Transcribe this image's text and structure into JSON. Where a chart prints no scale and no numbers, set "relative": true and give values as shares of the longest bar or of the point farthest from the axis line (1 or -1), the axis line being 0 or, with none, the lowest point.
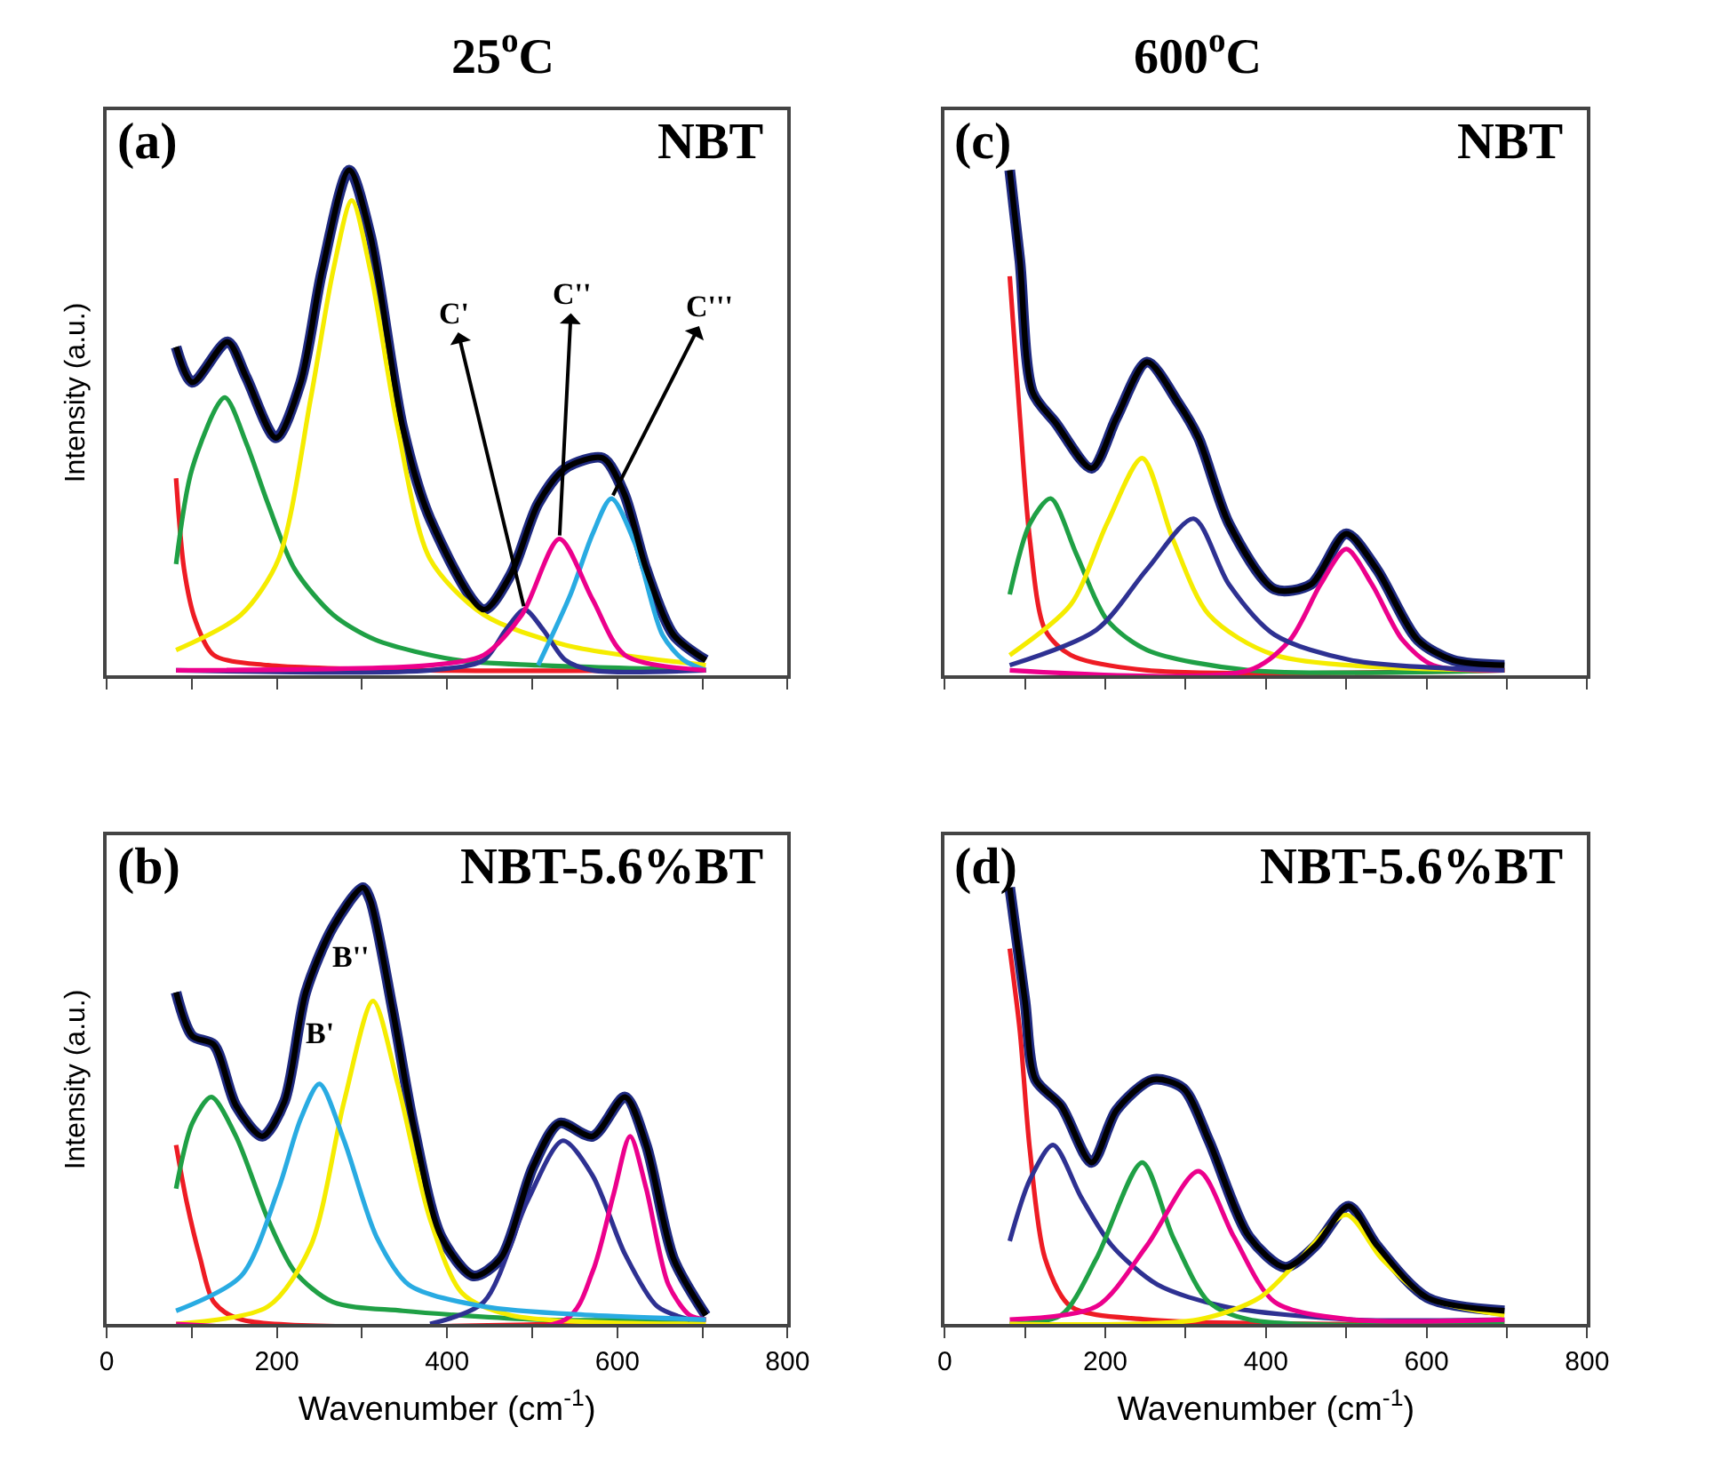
{
  "chart_data": [
    {
      "type": "line",
      "relative": true,
      "title": "25$^{o}$C",
      "ylabel": "Intensity (a.u.)",
      "xlim": [
        0,
        800
      ],
      "xticks": [
        0,
        {
          "value": 100,
          "label": null
        },
        {
          "value": 200,
          "label": null
        },
        {
          "value": 300,
          "label": null
        },
        {
          "value": 400,
          "label": null
        },
        {
          "value": 500,
          "label": null
        },
        {
          "value": 600,
          "label": null
        },
        {
          "value": 700,
          "label": null
        },
        {
          "value": 800,
          "label": null
        }
      ],
      "tick_labels": false,
      "annotations": [
        "(a)",
        "NBT",
        {
          "text": "C'",
          "x": 491,
          "y": 0.13
        },
        {
          "text": "C''",
          "x": 532,
          "y": 0.27
        },
        {
          "text": "C'''",
          "x": 593,
          "y": 0.35
        }
      ],
      "series": [
        {
          "color": "#1f2a80",
          "x": [
            81.6,
            100.6,
            142,
            164,
            199,
            228,
            253,
            285,
            310,
            348,
            380,
            443,
            475,
            507,
            539,
            583,
            608,
            634,
            666,
            704
          ],
          "values": [
            0.65,
            0.58,
            0.66,
            0.59,
            0.47,
            0.58,
            0.8,
            1.0,
            0.87,
            0.49,
            0.31,
            0.13,
            0.2,
            0.34,
            0.41,
            0.43,
            0.36,
            0.21,
            0.08,
            0.03
          ]
        },
        {
          "color": "#ee1c24",
          "x": [
            81.6,
            91,
            104,
            126,
            189.5,
            380,
            704
          ],
          "values": [
            0.39,
            0.21,
            0.11,
            0.04,
            0.02,
            0.01,
            0.01
          ]
        },
        {
          "color": "#1fa045",
          "x": [
            81.6,
            100.6,
            138.7,
            164,
            189.5,
            221,
            266,
            316,
            412,
            507,
            704
          ],
          "values": [
            0.22,
            0.41,
            0.55,
            0.46,
            0.34,
            0.21,
            0.12,
            0.07,
            0.03,
            0.02,
            0.01
          ]
        },
        {
          "color": "#f5ec00",
          "x": [
            81.6,
            158,
            202,
            240,
            266,
            288,
            310,
            342,
            380,
            443,
            539,
            704
          ],
          "values": [
            0.05,
            0.12,
            0.23,
            0.55,
            0.8,
            0.94,
            0.8,
            0.49,
            0.23,
            0.12,
            0.06,
            0.02
          ]
        },
        {
          "color": "#2e3192",
          "x": [
            81.6,
            380,
            443,
            469,
            491,
            513,
            539,
            571,
            704
          ],
          "values": [
            0.01,
            0.01,
            0.03,
            0.09,
            0.13,
            0.09,
            0.03,
            0.01,
            0.01
          ]
        },
        {
          "color": "#29abe2",
          "x": [
            507,
            545,
            571,
            593,
            621,
            653,
            678,
            704
          ],
          "values": [
            0.02,
            0.16,
            0.28,
            0.35,
            0.26,
            0.08,
            0.03,
            0.01
          ]
        },
        {
          "color": "#ec008c",
          "x": [
            81.6,
            380,
            443,
            488,
            532,
            571,
            609,
            704
          ],
          "values": [
            0.01,
            0.02,
            0.04,
            0.12,
            0.27,
            0.15,
            0.04,
            0.01
          ]
        },
        {
          "color": "#000000",
          "x": [
            81.6,
            100.6,
            142,
            164,
            199,
            228,
            253,
            285,
            310,
            348,
            380,
            443,
            475,
            507,
            539,
            583,
            608,
            634,
            666,
            704
          ],
          "values": [
            0.65,
            0.58,
            0.66,
            0.59,
            0.47,
            0.58,
            0.8,
            1.0,
            0.87,
            0.49,
            0.31,
            0.13,
            0.2,
            0.34,
            0.41,
            0.43,
            0.36,
            0.21,
            0.08,
            0.03
          ]
        }
      ]
    },
    {
      "type": "line",
      "relative": true,
      "title": "600$^{o}$C",
      "xlim": [
        0,
        800
      ],
      "xticks": [
        0,
        {
          "value": 100,
          "label": null
        },
        {
          "value": 200,
          "label": null
        },
        {
          "value": 300,
          "label": null
        },
        {
          "value": 400,
          "label": null
        },
        {
          "value": 500,
          "label": null
        },
        {
          "value": 600,
          "label": null
        },
        {
          "value": 700,
          "label": null
        },
        {
          "value": 800,
          "label": null
        }
      ],
      "tick_labels": false,
      "annotations": [
        "(c)",
        "NBT"
      ],
      "series": [
        {
          "color": "#1f2a80",
          "x": [
            81,
            93.7,
            109.6,
            138,
            183,
            214,
            252,
            290.5,
            316,
            354,
            411,
            456,
            500,
            538,
            589,
            633,
            697
          ],
          "values": [
            1.0,
            0.82,
            0.56,
            0.5,
            0.41,
            0.51,
            0.62,
            0.54,
            0.47,
            0.3,
            0.17,
            0.18,
            0.28,
            0.21,
            0.07,
            0.03,
            0.02
          ]
        },
        {
          "color": "#ee1c24",
          "x": [
            81,
            93.7,
            106,
            125,
            157,
            252,
            697
          ],
          "values": [
            0.79,
            0.51,
            0.27,
            0.09,
            0.04,
            0.01,
            0.01
          ]
        },
        {
          "color": "#1fa045",
          "x": [
            81,
            106,
            132,
            164,
            202,
            252,
            379,
            697
          ],
          "values": [
            0.16,
            0.3,
            0.35,
            0.24,
            0.11,
            0.05,
            0.01,
            0.01
          ]
        },
        {
          "color": "#f5ec00",
          "x": [
            81,
            157,
            202,
            246,
            284,
            329,
            411,
            697
          ],
          "values": [
            0.04,
            0.14,
            0.3,
            0.43,
            0.27,
            0.12,
            0.04,
            0.01
          ]
        },
        {
          "color": "#ec008c",
          "x": [
            81,
            379,
            430,
            468,
            500,
            532,
            570,
            608,
            697
          ],
          "values": [
            0.01,
            0.01,
            0.07,
            0.18,
            0.25,
            0.18,
            0.07,
            0.02,
            0.01
          ]
        },
        {
          "color": "#2e3192",
          "x": [
            81,
            189,
            252,
            310,
            354,
            411,
            506,
            697
          ],
          "values": [
            0.02,
            0.09,
            0.21,
            0.31,
            0.18,
            0.08,
            0.03,
            0.01
          ]
        },
        {
          "color": "#000000",
          "x": [
            81,
            93.7,
            109.6,
            138,
            183,
            214,
            252,
            290.5,
            316,
            354,
            411,
            456,
            500,
            538,
            589,
            633,
            697
          ],
          "values": [
            1.0,
            0.82,
            0.56,
            0.5,
            0.41,
            0.51,
            0.62,
            0.54,
            0.47,
            0.3,
            0.17,
            0.18,
            0.28,
            0.21,
            0.07,
            0.03,
            0.02
          ]
        }
      ]
    },
    {
      "type": "line",
      "relative": true,
      "ylabel": "Intensity (a.u.)",
      "xlabel": "Wavenumber (cm$^{-1}$)",
      "xlim": [
        0,
        800
      ],
      "xticks": [
        0,
        {
          "value": 100,
          "label": null
        },
        200,
        {
          "value": 300,
          "label": null
        },
        400,
        {
          "value": 500,
          "label": null
        },
        600,
        {
          "value": 700,
          "label": null
        },
        800
      ],
      "tick_labels": "x",
      "annotations": [
        "(b)",
        "NBT-5.6%BT",
        {
          "text": "B'",
          "x": 250,
          "y": 0.55
        },
        {
          "text": "B''",
          "x": 313,
          "y": 0.74
        }
      ],
      "series": [
        {
          "color": "#1f2a80",
          "x": [
            81.6,
            100.6,
            126,
            152,
            183,
            209,
            234,
            266,
            301,
            310,
            336,
            361,
            393,
            431,
            463,
            501,
            532,
            571,
            609,
            634,
            666,
            704
          ],
          "values": [
            0.76,
            0.66,
            0.64,
            0.5,
            0.43,
            0.51,
            0.76,
            0.91,
            1.0,
            0.97,
            0.72,
            0.45,
            0.2,
            0.11,
            0.15,
            0.36,
            0.46,
            0.43,
            0.52,
            0.41,
            0.15,
            0.02
          ]
        },
        {
          "color": "#ee1c24",
          "x": [
            81.6,
            94,
            110,
            126,
            158,
            704
          ],
          "values": [
            0.41,
            0.28,
            0.15,
            0.05,
            0.01,
            0.01
          ]
        },
        {
          "color": "#1fa045",
          "x": [
            81.6,
            100.6,
            123,
            152,
            189.5,
            221,
            266,
            348,
            507,
            704
          ],
          "values": [
            0.31,
            0.46,
            0.52,
            0.43,
            0.24,
            0.12,
            0.05,
            0.03,
            0.01,
            0.01
          ]
        },
        {
          "color": "#f5ec00",
          "x": [
            81.6,
            189.5,
            240,
            279,
            313,
            342,
            380,
            418,
            475,
            704
          ],
          "values": [
            0,
            0.04,
            0.18,
            0.51,
            0.74,
            0.55,
            0.24,
            0.07,
            0.02,
            0
          ]
        },
        {
          "color": "#2e3192",
          "x": [
            380,
            443,
            494,
            536,
            571,
            609,
            647,
            685
          ],
          "values": [
            0,
            0.05,
            0.28,
            0.42,
            0.34,
            0.16,
            0.04,
            0.01
          ]
        },
        {
          "color": "#ec008c",
          "x": [
            81.6,
            539,
            571,
            596,
            615,
            634,
            660,
            685,
            704
          ],
          "values": [
            0,
            0.01,
            0.12,
            0.3,
            0.43,
            0.31,
            0.09,
            0.02,
            0.01
          ]
        },
        {
          "color": "#29abe2",
          "x": [
            81.6,
            158,
            202,
            228,
            250,
            279,
            317,
            355,
            443,
            570,
            704
          ],
          "values": [
            0.03,
            0.11,
            0.31,
            0.47,
            0.55,
            0.42,
            0.2,
            0.09,
            0.04,
            0.02,
            0.01
          ]
        },
        {
          "color": "#000000",
          "x": [
            81.6,
            100.6,
            126,
            152,
            183,
            209,
            234,
            266,
            301,
            310,
            336,
            361,
            393,
            431,
            463,
            501,
            532,
            571,
            609,
            634,
            666,
            704
          ],
          "values": [
            0.76,
            0.66,
            0.64,
            0.5,
            0.43,
            0.51,
            0.76,
            0.91,
            1.0,
            0.97,
            0.72,
            0.45,
            0.2,
            0.11,
            0.15,
            0.36,
            0.46,
            0.43,
            0.52,
            0.41,
            0.15,
            0.02
          ]
        }
      ]
    },
    {
      "type": "line",
      "relative": true,
      "xlabel": "Wavenumber (cm$^{-1}$)",
      "xlim": [
        0,
        800
      ],
      "xticks": [
        0,
        {
          "value": 100,
          "label": null
        },
        200,
        {
          "value": 300,
          "label": null
        },
        400,
        {
          "value": 500,
          "label": null
        },
        600,
        {
          "value": 700,
          "label": null
        },
        800
      ],
      "tick_labels": "x",
      "annotations": [
        "(d)",
        "NBT-5.6%BT"
      ],
      "series": [
        {
          "color": "#1f2a80",
          "x": [
            81,
            100,
            113,
            145,
            183,
            214,
            259,
            297,
            329,
            379,
            424,
            462,
            503,
            538,
            601,
            697
          ],
          "values": [
            1.0,
            0.74,
            0.56,
            0.5,
            0.37,
            0.49,
            0.56,
            0.54,
            0.42,
            0.2,
            0.13,
            0.18,
            0.27,
            0.18,
            0.06,
            0.03
          ]
        },
        {
          "color": "#ee1c24",
          "x": [
            81,
            93.7,
            106,
            125,
            157,
            252,
            697
          ],
          "values": [
            0.86,
            0.67,
            0.4,
            0.15,
            0.04,
            0.01,
            0
          ]
        },
        {
          "color": "#2e3192",
          "x": [
            81,
            106,
            135,
            170,
            208,
            265,
            348,
            506,
            697
          ],
          "values": [
            0.19,
            0.33,
            0.41,
            0.29,
            0.18,
            0.09,
            0.04,
            0.01,
            0.01
          ]
        },
        {
          "color": "#1fa045",
          "x": [
            81,
            145,
            189,
            246,
            284,
            329,
            379,
            697
          ],
          "values": [
            0,
            0.02,
            0.15,
            0.37,
            0.2,
            0.05,
            0.01,
            0
          ]
        },
        {
          "color": "#ec008c",
          "x": [
            81,
            189,
            252,
            316,
            360,
            411,
            506,
            697
          ],
          "values": [
            0.01,
            0.04,
            0.18,
            0.35,
            0.2,
            0.05,
            0.01,
            0.01
          ]
        },
        {
          "color": "#f5ec00",
          "x": [
            81,
            316,
            392,
            443,
            500,
            544,
            601,
            697
          ],
          "values": [
            0,
            0.01,
            0.06,
            0.15,
            0.25,
            0.15,
            0.06,
            0.02
          ]
        },
        {
          "color": "#000000",
          "x": [
            81,
            100,
            113,
            145,
            183,
            214,
            259,
            297,
            329,
            379,
            424,
            462,
            503,
            538,
            601,
            697
          ],
          "values": [
            1.0,
            0.74,
            0.56,
            0.5,
            0.37,
            0.49,
            0.56,
            0.54,
            0.42,
            0.2,
            0.13,
            0.18,
            0.27,
            0.18,
            0.06,
            0.03
          ]
        }
      ]
    }
  ]
}
